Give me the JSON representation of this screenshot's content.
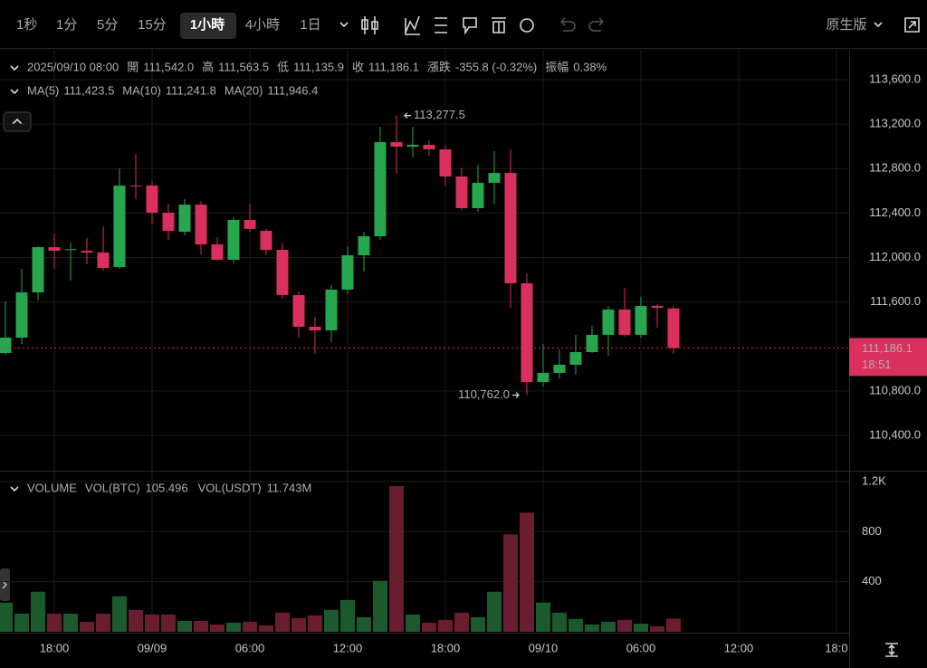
{
  "toolbar": {
    "intervals": [
      "1秒",
      "1分",
      "5分",
      "15分",
      "1小時",
      "4小時",
      "1日"
    ],
    "selected": "1小時",
    "version": "原生版"
  },
  "chart_data": {
    "type": "candlestick",
    "ohlc_legend": {
      "time": "2025/09/10 08:00",
      "items": [
        {
          "label": "開",
          "value": "111,542.0"
        },
        {
          "label": "高",
          "value": "111,563.5"
        },
        {
          "label": "低",
          "value": "111,135.9"
        },
        {
          "label": "收",
          "value": "111,186.1"
        },
        {
          "label": "漲跌",
          "value": "-355.8 (-0.32%)"
        },
        {
          "label": "振幅",
          "value": "0.38%"
        }
      ]
    },
    "ma_legend": [
      {
        "label": "MA(5)",
        "value": "111,423.5",
        "color": "#f0a030"
      },
      {
        "label": "MA(10)",
        "value": "111,241.8",
        "color": "#e0407a"
      },
      {
        "label": "MA(20)",
        "value": "111,946.4",
        "color": "#3ab0d0"
      }
    ],
    "volume_legend": {
      "title": "VOLUME",
      "items": [
        {
          "label": "VOL(BTC)",
          "value": "105.496"
        },
        {
          "label": "VOL(USDT)",
          "value": "11.743M"
        }
      ]
    },
    "up_color": "#27a650",
    "down_color": "#d9305d",
    "volume_up_color": "#1c5a2d",
    "volume_down_color": "#6b1d30",
    "open": [
      111141,
      111279,
      111686,
      112093,
      112069,
      112061,
      112045,
      111914,
      112647,
      112647,
      112403,
      112232,
      112476,
      112118,
      111980,
      112338,
      112240,
      112069,
      111662,
      111377,
      111344,
      111711,
      112020,
      112191,
      113038,
      112997,
      113014,
      112973,
      112729,
      112444,
      112672,
      112761,
      111768,
      110880,
      110962,
      111035,
      111149,
      111304,
      111532,
      111304,
      111564,
      111542
    ],
    "high": [
      111605,
      111898,
      112102,
      112216,
      112134,
      112175,
      112281,
      112802,
      112932,
      112688,
      112484,
      112525,
      112508,
      112183,
      112362,
      112484,
      112257,
      112134,
      111695,
      111467,
      111752,
      112102,
      112232,
      113177,
      113277.5,
      113177,
      113054,
      113014,
      112810,
      112834,
      112957,
      112973,
      111857,
      111222,
      111173,
      111304,
      111385,
      111564,
      111727,
      111646,
      111580,
      111563.5
    ],
    "low": [
      111125,
      111222,
      111613,
      111898,
      111792,
      111939,
      111882,
      111898,
      112525,
      112305,
      112159,
      112199,
      112029,
      111972,
      111947,
      112232,
      112020,
      111629,
      111279,
      111133,
      111239,
      111670,
      111874,
      112159,
      112753,
      112900,
      112916,
      112647,
      112427,
      112411,
      112484,
      111548,
      110762,
      110840,
      110913,
      110945,
      111141,
      111116,
      111288,
      111279,
      111369,
      111135.9
    ],
    "close": [
      111279,
      111686,
      112093,
      112061,
      112075,
      112045,
      111906,
      112647,
      112639,
      112403,
      112240,
      112476,
      112118,
      111980,
      112338,
      112257,
      112069,
      111662,
      111377,
      111344,
      111711,
      112020,
      112191,
      113038,
      112997,
      113014,
      112973,
      112729,
      112444,
      112672,
      112761,
      111768,
      110880,
      110962,
      111035,
      111149,
      111304,
      111532,
      111304,
      111564,
      111548,
      111186.1
    ],
    "volume": [
      233,
      145,
      320,
      145,
      145,
      80,
      145,
      284,
      175,
      138,
      138,
      87,
      87,
      58,
      73,
      80,
      51,
      153,
      109,
      131,
      175,
      254,
      116,
      407,
      1163,
      138,
      73,
      95,
      153,
      116,
      320,
      778,
      952,
      233,
      153,
      102,
      58,
      80,
      95,
      65,
      44,
      105.496
    ],
    "xlim": [
      -0.333,
      51.78
    ],
    "xticks": [
      {
        "value": 3,
        "label": "18:00"
      },
      {
        "value": 9,
        "label": "09/09"
      },
      {
        "value": 15,
        "label": "06:00"
      },
      {
        "value": 21,
        "label": "12:00"
      },
      {
        "value": 27,
        "label": "18:00"
      },
      {
        "value": 33,
        "label": "09/10"
      },
      {
        "value": 39,
        "label": "06:00"
      },
      {
        "value": 45,
        "label": "12:00"
      },
      {
        "value": 51,
        "label": "18:0"
      }
    ],
    "ylim": [
      110082,
      113869
    ],
    "yticks": [
      {
        "value": 113600,
        "label": "113,600.0"
      },
      {
        "value": 113200,
        "label": "113,200.0"
      },
      {
        "value": 112800,
        "label": "112,800.0"
      },
      {
        "value": 112400,
        "label": "112,400.0"
      },
      {
        "value": 112000,
        "label": "112,000.0"
      },
      {
        "value": 111600,
        "label": "111,600.0"
      },
      {
        "value": 110800,
        "label": "110,800.0"
      },
      {
        "value": 110400,
        "label": "110,400.0"
      }
    ],
    "volume_ylim": [
      0,
      1265
    ],
    "volume_yticks": [
      {
        "value": 1200,
        "label": "1.2K"
      },
      800,
      400
    ],
    "high_label": "113,277.5",
    "low_label": "110,762.0",
    "last_price": {
      "value": 111186.1,
      "label": "111,186.1"
    },
    "countdown": "18:51",
    "grid": true
  }
}
